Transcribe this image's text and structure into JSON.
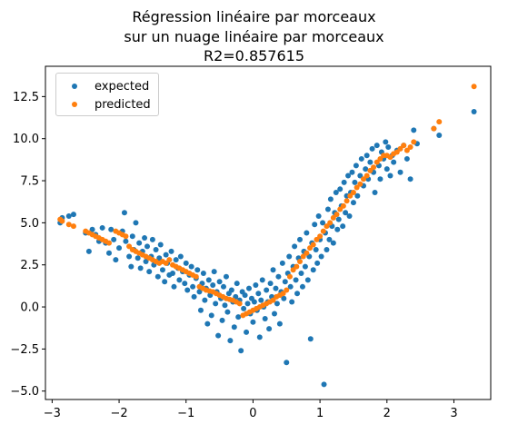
{
  "chart_data": {
    "type": "scatter",
    "title_lines": [
      "Régression linéaire par morceaux",
      "sur un nuage linéaire par morceaux",
      "R2=0.857615"
    ],
    "xlabel": "",
    "ylabel": "",
    "xlim": [
      -3.1,
      3.55
    ],
    "ylim": [
      -5.5,
      14.3
    ],
    "xticks": [
      -3,
      -2,
      -1,
      0,
      1,
      2,
      3
    ],
    "yticks": [
      -5.0,
      -2.5,
      0.0,
      2.5,
      5.0,
      7.5,
      10.0,
      12.5
    ],
    "ytick_labels": [
      "−5.0",
      "−2.5",
      "0.0",
      "2.5",
      "5.0",
      "7.5",
      "10.0",
      "12.5"
    ],
    "xtick_labels": [
      "−3",
      "−2",
      "−1",
      "0",
      "1",
      "2",
      "3"
    ],
    "grid": false,
    "legend_position": "top-left",
    "series": [
      {
        "name": "expected",
        "color": "#1f77b4",
        "points": [
          [
            -2.88,
            5.0
          ],
          [
            -2.85,
            5.3
          ],
          [
            -2.75,
            5.4
          ],
          [
            -2.68,
            5.5
          ],
          [
            -2.5,
            4.4
          ],
          [
            -2.45,
            3.3
          ],
          [
            -2.4,
            4.6
          ],
          [
            -2.35,
            4.3
          ],
          [
            -2.3,
            3.9
          ],
          [
            -2.25,
            4.7
          ],
          [
            -2.2,
            3.8
          ],
          [
            -2.15,
            3.2
          ],
          [
            -2.12,
            4.6
          ],
          [
            -2.08,
            4.0
          ],
          [
            -2.05,
            2.8
          ],
          [
            -2.0,
            3.5
          ],
          [
            -1.95,
            4.5
          ],
          [
            -1.92,
            5.6
          ],
          [
            -1.9,
            3.9
          ],
          [
            -1.85,
            3.0
          ],
          [
            -1.82,
            2.4
          ],
          [
            -1.8,
            4.2
          ],
          [
            -1.78,
            3.4
          ],
          [
            -1.75,
            5.0
          ],
          [
            -1.72,
            2.9
          ],
          [
            -1.7,
            3.8
          ],
          [
            -1.68,
            2.3
          ],
          [
            -1.65,
            3.3
          ],
          [
            -1.62,
            4.1
          ],
          [
            -1.6,
            2.7
          ],
          [
            -1.58,
            3.6
          ],
          [
            -1.55,
            2.1
          ],
          [
            -1.52,
            3.0
          ],
          [
            -1.5,
            4.0
          ],
          [
            -1.48,
            2.5
          ],
          [
            -1.45,
            3.4
          ],
          [
            -1.42,
            1.8
          ],
          [
            -1.4,
            2.9
          ],
          [
            -1.38,
            3.7
          ],
          [
            -1.35,
            2.2
          ],
          [
            -1.32,
            1.5
          ],
          [
            -1.3,
            3.1
          ],
          [
            -1.28,
            2.6
          ],
          [
            -1.25,
            1.9
          ],
          [
            -1.22,
            3.3
          ],
          [
            -1.2,
            2.0
          ],
          [
            -1.18,
            1.2
          ],
          [
            -1.15,
            2.8
          ],
          [
            -1.12,
            2.3
          ],
          [
            -1.1,
            1.6
          ],
          [
            -1.08,
            3.0
          ],
          [
            -1.05,
            2.1
          ],
          [
            -1.02,
            1.4
          ],
          [
            -1.0,
            2.6
          ],
          [
            -0.98,
            1.0
          ],
          [
            -0.95,
            1.9
          ],
          [
            -0.92,
            2.4
          ],
          [
            -0.9,
            1.2
          ],
          [
            -0.88,
            0.6
          ],
          [
            -0.85,
            1.7
          ],
          [
            -0.83,
            2.2
          ],
          [
            -0.8,
            0.9
          ],
          [
            -0.78,
            -0.2
          ],
          [
            -0.76,
            1.4
          ],
          [
            -0.74,
            2.0
          ],
          [
            -0.72,
            0.4
          ],
          [
            -0.7,
            1.1
          ],
          [
            -0.68,
            -1.0
          ],
          [
            -0.66,
            1.6
          ],
          [
            -0.64,
            0.7
          ],
          [
            -0.62,
            -0.5
          ],
          [
            -0.6,
            1.3
          ],
          [
            -0.58,
            2.1
          ],
          [
            -0.56,
            0.2
          ],
          [
            -0.54,
            0.9
          ],
          [
            -0.52,
            -1.7
          ],
          [
            -0.5,
            1.5
          ],
          [
            -0.48,
            0.5
          ],
          [
            -0.46,
            -0.8
          ],
          [
            -0.44,
            1.2
          ],
          [
            -0.42,
            0.1
          ],
          [
            -0.4,
            1.8
          ],
          [
            -0.38,
            -0.3
          ],
          [
            -0.36,
            0.8
          ],
          [
            -0.34,
            -2.0
          ],
          [
            -0.32,
            1.0
          ],
          [
            -0.3,
            0.3
          ],
          [
            -0.28,
            -1.2
          ],
          [
            -0.26,
            0.6
          ],
          [
            -0.24,
            1.4
          ],
          [
            -0.22,
            -0.6
          ],
          [
            -0.2,
            0.4
          ],
          [
            -0.18,
            -2.6
          ],
          [
            -0.16,
            0.9
          ],
          [
            -0.14,
            -0.1
          ],
          [
            -0.12,
            0.7
          ],
          [
            -0.1,
            -1.5
          ],
          [
            -0.08,
            0.2
          ],
          [
            -0.06,
            1.1
          ],
          [
            -0.04,
            -0.4
          ],
          [
            -0.02,
            0.5
          ],
          [
            0.0,
            -0.9
          ],
          [
            0.02,
            0.3
          ],
          [
            0.04,
            1.3
          ],
          [
            0.06,
            -0.2
          ],
          [
            0.08,
            0.8
          ],
          [
            0.1,
            -1.8
          ],
          [
            0.12,
            0.4
          ],
          [
            0.14,
            1.6
          ],
          [
            0.16,
            0.0
          ],
          [
            0.18,
            -0.7
          ],
          [
            0.2,
            1.0
          ],
          [
            0.22,
            0.3
          ],
          [
            0.24,
            -1.3
          ],
          [
            0.26,
            1.4
          ],
          [
            0.28,
            0.6
          ],
          [
            0.3,
            2.2
          ],
          [
            0.32,
            -0.4
          ],
          [
            0.34,
            1.1
          ],
          [
            0.36,
            0.2
          ],
          [
            0.38,
            1.8
          ],
          [
            0.4,
            -1.0
          ],
          [
            0.42,
            0.9
          ],
          [
            0.44,
            2.6
          ],
          [
            0.46,
            0.5
          ],
          [
            0.48,
            1.5
          ],
          [
            0.5,
            -3.3
          ],
          [
            0.52,
            2.0
          ],
          [
            0.54,
            3.0
          ],
          [
            0.56,
            1.2
          ],
          [
            0.58,
            0.3
          ],
          [
            0.6,
            2.4
          ],
          [
            0.62,
            3.6
          ],
          [
            0.64,
            1.6
          ],
          [
            0.66,
            0.8
          ],
          [
            0.68,
            2.9
          ],
          [
            0.7,
            4.0
          ],
          [
            0.72,
            2.0
          ],
          [
            0.74,
            1.2
          ],
          [
            0.76,
            3.3
          ],
          [
            0.78,
            2.4
          ],
          [
            0.8,
            4.4
          ],
          [
            0.82,
            1.6
          ],
          [
            0.84,
            3.0
          ],
          [
            0.86,
            -1.9
          ],
          [
            0.88,
            3.8
          ],
          [
            0.9,
            2.2
          ],
          [
            0.92,
            4.9
          ],
          [
            0.94,
            3.4
          ],
          [
            0.96,
            2.6
          ],
          [
            0.98,
            5.4
          ],
          [
            1.0,
            4.0
          ],
          [
            1.02,
            3.0
          ],
          [
            1.04,
            5.0
          ],
          [
            1.06,
            -4.6
          ],
          [
            1.08,
            4.4
          ],
          [
            1.1,
            3.4
          ],
          [
            1.12,
            5.8
          ],
          [
            1.14,
            4.0
          ],
          [
            1.16,
            6.4
          ],
          [
            1.18,
            4.8
          ],
          [
            1.2,
            3.8
          ],
          [
            1.22,
            5.6
          ],
          [
            1.24,
            6.8
          ],
          [
            1.26,
            4.6
          ],
          [
            1.28,
            5.2
          ],
          [
            1.3,
            7.0
          ],
          [
            1.32,
            6.0
          ],
          [
            1.34,
            4.8
          ],
          [
            1.36,
            7.4
          ],
          [
            1.38,
            5.6
          ],
          [
            1.4,
            6.6
          ],
          [
            1.42,
            7.8
          ],
          [
            1.44,
            5.4
          ],
          [
            1.46,
            6.8
          ],
          [
            1.48,
            8.0
          ],
          [
            1.5,
            6.2
          ],
          [
            1.52,
            7.4
          ],
          [
            1.54,
            8.4
          ],
          [
            1.56,
            6.6
          ],
          [
            1.6,
            7.8
          ],
          [
            1.62,
            8.8
          ],
          [
            1.65,
            7.2
          ],
          [
            1.68,
            8.2
          ],
          [
            1.7,
            9.0
          ],
          [
            1.72,
            7.6
          ],
          [
            1.75,
            8.6
          ],
          [
            1.78,
            9.4
          ],
          [
            1.8,
            8.0
          ],
          [
            1.82,
            6.8
          ],
          [
            1.85,
            9.6
          ],
          [
            1.88,
            8.4
          ],
          [
            1.9,
            7.6
          ],
          [
            1.92,
            9.2
          ],
          [
            1.95,
            8.8
          ],
          [
            1.98,
            9.8
          ],
          [
            2.0,
            8.2
          ],
          [
            2.02,
            9.5
          ],
          [
            2.05,
            7.8
          ],
          [
            2.08,
            9.0
          ],
          [
            2.1,
            8.6
          ],
          [
            2.15,
            9.3
          ],
          [
            2.2,
            8.0
          ],
          [
            2.25,
            9.6
          ],
          [
            2.3,
            8.8
          ],
          [
            2.35,
            7.6
          ],
          [
            2.4,
            10.5
          ],
          [
            2.45,
            9.7
          ],
          [
            2.7,
            10.6
          ],
          [
            2.78,
            10.2
          ],
          [
            3.3,
            11.6
          ]
        ]
      },
      {
        "name": "predicted",
        "color": "#ff7f0e",
        "points": [
          [
            -2.88,
            5.2
          ],
          [
            -2.85,
            5.1
          ],
          [
            -2.75,
            4.9
          ],
          [
            -2.68,
            4.8
          ],
          [
            -2.5,
            4.5
          ],
          [
            -2.45,
            4.4
          ],
          [
            -2.4,
            4.3
          ],
          [
            -2.35,
            4.2
          ],
          [
            -2.3,
            4.1
          ],
          [
            -2.25,
            4.0
          ],
          [
            -2.2,
            3.9
          ],
          [
            -2.15,
            3.8
          ],
          [
            -2.05,
            4.5
          ],
          [
            -2.0,
            4.4
          ],
          [
            -1.95,
            4.3
          ],
          [
            -1.9,
            4.2
          ],
          [
            -1.85,
            3.6
          ],
          [
            -1.8,
            3.4
          ],
          [
            -1.75,
            3.3
          ],
          [
            -1.7,
            3.2
          ],
          [
            -1.65,
            3.1
          ],
          [
            -1.6,
            3.0
          ],
          [
            -1.55,
            2.9
          ],
          [
            -1.5,
            2.8
          ],
          [
            -1.45,
            2.7
          ],
          [
            -1.4,
            2.6
          ],
          [
            -1.35,
            2.7
          ],
          [
            -1.3,
            2.6
          ],
          [
            -1.25,
            2.8
          ],
          [
            -1.2,
            2.5
          ],
          [
            -1.15,
            2.4
          ],
          [
            -1.1,
            2.3
          ],
          [
            -1.05,
            2.2
          ],
          [
            -1.0,
            2.1
          ],
          [
            -0.95,
            2.0
          ],
          [
            -0.9,
            1.9
          ],
          [
            -0.85,
            1.8
          ],
          [
            -0.8,
            1.2
          ],
          [
            -0.75,
            1.1
          ],
          [
            -0.7,
            1.0
          ],
          [
            -0.65,
            0.95
          ],
          [
            -0.6,
            0.9
          ],
          [
            -0.55,
            0.8
          ],
          [
            -0.5,
            0.7
          ],
          [
            -0.45,
            0.6
          ],
          [
            -0.4,
            0.5
          ],
          [
            -0.35,
            0.45
          ],
          [
            -0.3,
            0.4
          ],
          [
            -0.25,
            0.3
          ],
          [
            -0.2,
            0.2
          ],
          [
            -0.15,
            -0.5
          ],
          [
            -0.1,
            -0.4
          ],
          [
            -0.05,
            -0.3
          ],
          [
            0.0,
            -0.2
          ],
          [
            0.05,
            -0.1
          ],
          [
            0.1,
            0.0
          ],
          [
            0.15,
            0.1
          ],
          [
            0.2,
            0.2
          ],
          [
            0.25,
            0.3
          ],
          [
            0.3,
            0.4
          ],
          [
            0.35,
            0.6
          ],
          [
            0.4,
            0.7
          ],
          [
            0.45,
            0.8
          ],
          [
            0.5,
            1.0
          ],
          [
            0.55,
            1.8
          ],
          [
            0.6,
            2.2
          ],
          [
            0.65,
            2.4
          ],
          [
            0.7,
            2.7
          ],
          [
            0.75,
            3.0
          ],
          [
            0.8,
            3.2
          ],
          [
            0.85,
            3.5
          ],
          [
            0.9,
            3.7
          ],
          [
            0.95,
            4.0
          ],
          [
            1.0,
            4.2
          ],
          [
            1.05,
            4.5
          ],
          [
            1.1,
            4.8
          ],
          [
            1.15,
            5.0
          ],
          [
            1.2,
            5.3
          ],
          [
            1.25,
            5.5
          ],
          [
            1.3,
            5.8
          ],
          [
            1.35,
            6.0
          ],
          [
            1.4,
            6.3
          ],
          [
            1.45,
            6.6
          ],
          [
            1.5,
            6.8
          ],
          [
            1.55,
            7.1
          ],
          [
            1.6,
            7.3
          ],
          [
            1.65,
            7.6
          ],
          [
            1.7,
            7.8
          ],
          [
            1.75,
            8.1
          ],
          [
            1.8,
            8.3
          ],
          [
            1.85,
            8.6
          ],
          [
            1.9,
            8.8
          ],
          [
            1.95,
            9.0
          ],
          [
            2.0,
            9.0
          ],
          [
            2.05,
            8.9
          ],
          [
            2.1,
            9.1
          ],
          [
            2.15,
            9.2
          ],
          [
            2.2,
            9.4
          ],
          [
            2.25,
            9.6
          ],
          [
            2.3,
            9.3
          ],
          [
            2.35,
            9.5
          ],
          [
            2.4,
            9.8
          ],
          [
            2.7,
            10.6
          ],
          [
            2.78,
            11.0
          ],
          [
            3.3,
            13.1
          ]
        ]
      }
    ]
  }
}
